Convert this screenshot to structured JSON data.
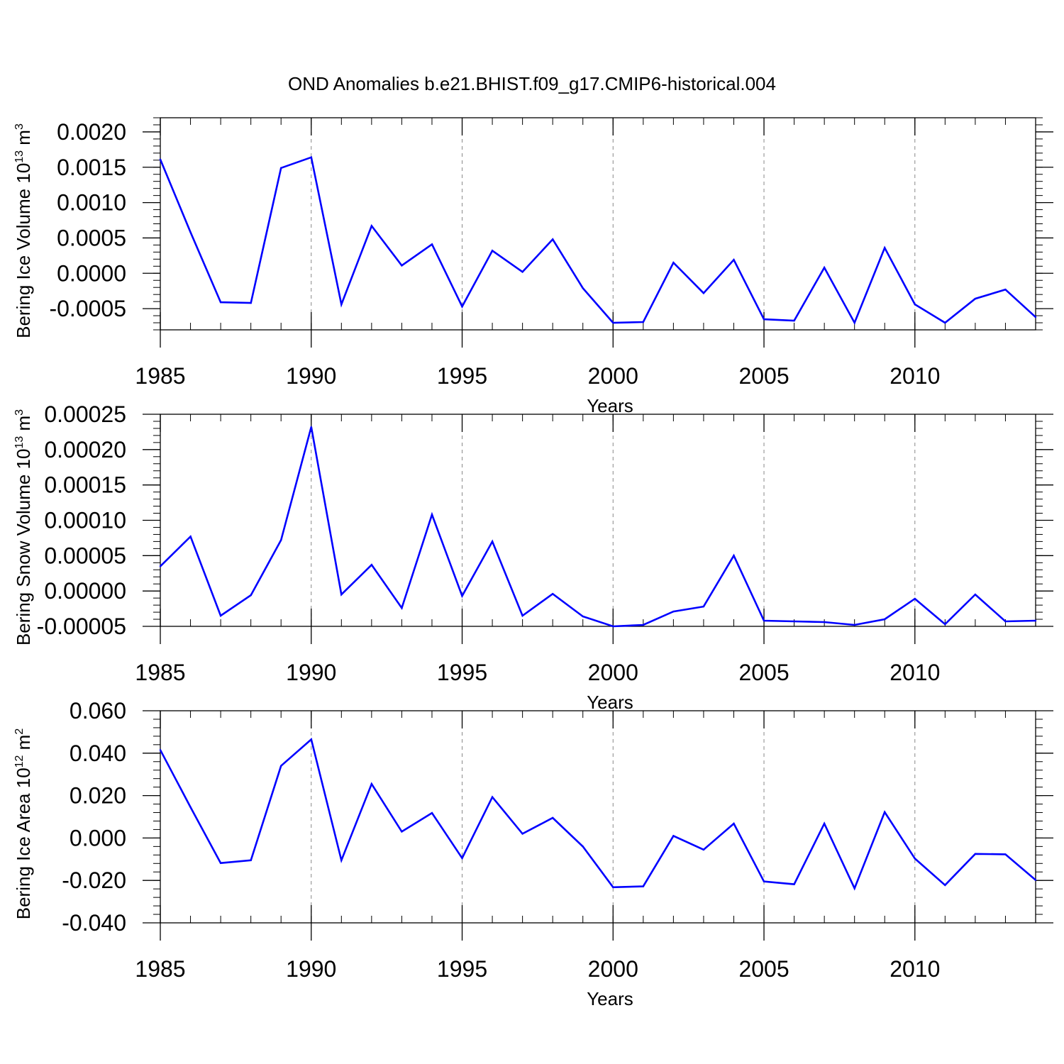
{
  "title": "OND Anomalies b.e21.BHIST.f09_g17.CMIP6-historical.004",
  "colors": {
    "line": "#0000ff",
    "axis": "#000000",
    "grid": "#888888"
  },
  "chart_data": [
    {
      "type": "line",
      "ylabel_parts": [
        "Bering Ice Volume 10",
        "13",
        " m",
        "3"
      ],
      "xlabel": "Years",
      "xlim": [
        1985,
        2014
      ],
      "ylim": [
        -0.0008,
        0.0022
      ],
      "ytick_values": [
        0.002,
        0.0015,
        0.001,
        0.0005,
        0.0,
        -0.0005
      ],
      "ytick_labels": [
        "0.0020",
        "0.0015",
        "0.0010",
        "0.0005",
        "0.0000",
        "-0.0005"
      ],
      "xtick_values": [
        1985,
        1990,
        1995,
        2000,
        2005,
        2010
      ],
      "xtick_labels": [
        "1985",
        "1990",
        "1995",
        "2000",
        "2005",
        "2010"
      ],
      "x": [
        1985,
        1986,
        1987,
        1988,
        1989,
        1990,
        1991,
        1992,
        1993,
        1994,
        1995,
        1996,
        1997,
        1998,
        1999,
        2000,
        2001,
        2002,
        2003,
        2004,
        2005,
        2006,
        2007,
        2008,
        2009,
        2010,
        2011,
        2012,
        2013,
        2014
      ],
      "values": [
        0.00161,
        0.00058,
        -0.00041,
        -0.00042,
        0.00149,
        0.00164,
        -0.00044,
        0.00067,
        0.00011,
        0.00041,
        -0.00047,
        0.00032,
        2e-05,
        0.00048,
        -0.00021,
        -0.0007,
        -0.00069,
        0.00015,
        -0.00028,
        0.00019,
        -0.00065,
        -0.00067,
        8e-05,
        -0.0007,
        0.00036,
        -0.00044,
        -0.0007,
        -0.00036,
        -0.00023,
        -0.00062
      ]
    },
    {
      "type": "line",
      "ylabel_parts": [
        "Bering Snow Volume 10",
        "13",
        " m",
        "3"
      ],
      "xlabel": "Years",
      "xlim": [
        1985,
        2014
      ],
      "ylim": [
        -5e-05,
        0.00025
      ],
      "ytick_values": [
        0.00025,
        0.0002,
        0.00015,
        0.0001,
        5e-05,
        0.0,
        -5e-05
      ],
      "ytick_labels": [
        "0.00025",
        "0.00020",
        "0.00015",
        "0.00010",
        "0.00005",
        "0.00000",
        "-0.00005"
      ],
      "xtick_values": [
        1985,
        1990,
        1995,
        2000,
        2005,
        2010
      ],
      "xtick_labels": [
        "1985",
        "1990",
        "1995",
        "2000",
        "2005",
        "2010"
      ],
      "x": [
        1985,
        1986,
        1987,
        1988,
        1989,
        1990,
        1991,
        1992,
        1993,
        1994,
        1995,
        1996,
        1997,
        1998,
        1999,
        2000,
        2001,
        2002,
        2003,
        2004,
        2005,
        2006,
        2007,
        2008,
        2009,
        2010,
        2011,
        2012,
        2013,
        2014
      ],
      "values": [
        3.5e-05,
        7.7e-05,
        -3.5e-05,
        -6e-06,
        7.2e-05,
        0.000232,
        -5e-06,
        3.7e-05,
        -2.4e-05,
        0.000108,
        -7e-06,
        7e-05,
        -3.5e-05,
        -4e-06,
        -3.6e-05,
        -5e-05,
        -4.8e-05,
        -2.9e-05,
        -2.2e-05,
        5e-05,
        -4.2e-05,
        -4.3e-05,
        -4.4e-05,
        -4.8e-05,
        -4e-05,
        -1.1e-05,
        -4.7e-05,
        -5e-06,
        -4.3e-05,
        -4.2e-05
      ]
    },
    {
      "type": "line",
      "ylabel_parts": [
        "Bering Ice Area 10",
        "12",
        " m",
        "2"
      ],
      "xlabel": "Years",
      "xlim": [
        1985,
        2014
      ],
      "ylim": [
        -0.04,
        0.06
      ],
      "ytick_values": [
        0.06,
        0.04,
        0.02,
        0.0,
        -0.02,
        -0.04
      ],
      "ytick_labels": [
        "0.060",
        "0.040",
        "0.020",
        "0.000",
        "-0.020",
        "-0.040"
      ],
      "xtick_values": [
        1985,
        1990,
        1995,
        2000,
        2005,
        2010
      ],
      "xtick_labels": [
        "1985",
        "1990",
        "1995",
        "2000",
        "2005",
        "2010"
      ],
      "x": [
        1985,
        1986,
        1987,
        1988,
        1989,
        1990,
        1991,
        1992,
        1993,
        1994,
        1995,
        1996,
        1997,
        1998,
        1999,
        2000,
        2001,
        2002,
        2003,
        2004,
        2005,
        2006,
        2007,
        2008,
        2009,
        2010,
        2011,
        2012,
        2013,
        2014
      ],
      "values": [
        0.0415,
        0.0145,
        -0.0118,
        -0.0105,
        0.034,
        0.0465,
        -0.0105,
        0.0255,
        0.003,
        0.0118,
        -0.0095,
        0.0193,
        0.002,
        0.0095,
        -0.004,
        -0.0232,
        -0.0228,
        0.001,
        -0.0055,
        0.0068,
        -0.0205,
        -0.0218,
        0.0068,
        -0.0237,
        0.0122,
        -0.0097,
        -0.0222,
        -0.0075,
        -0.0077,
        -0.0198
      ]
    }
  ]
}
